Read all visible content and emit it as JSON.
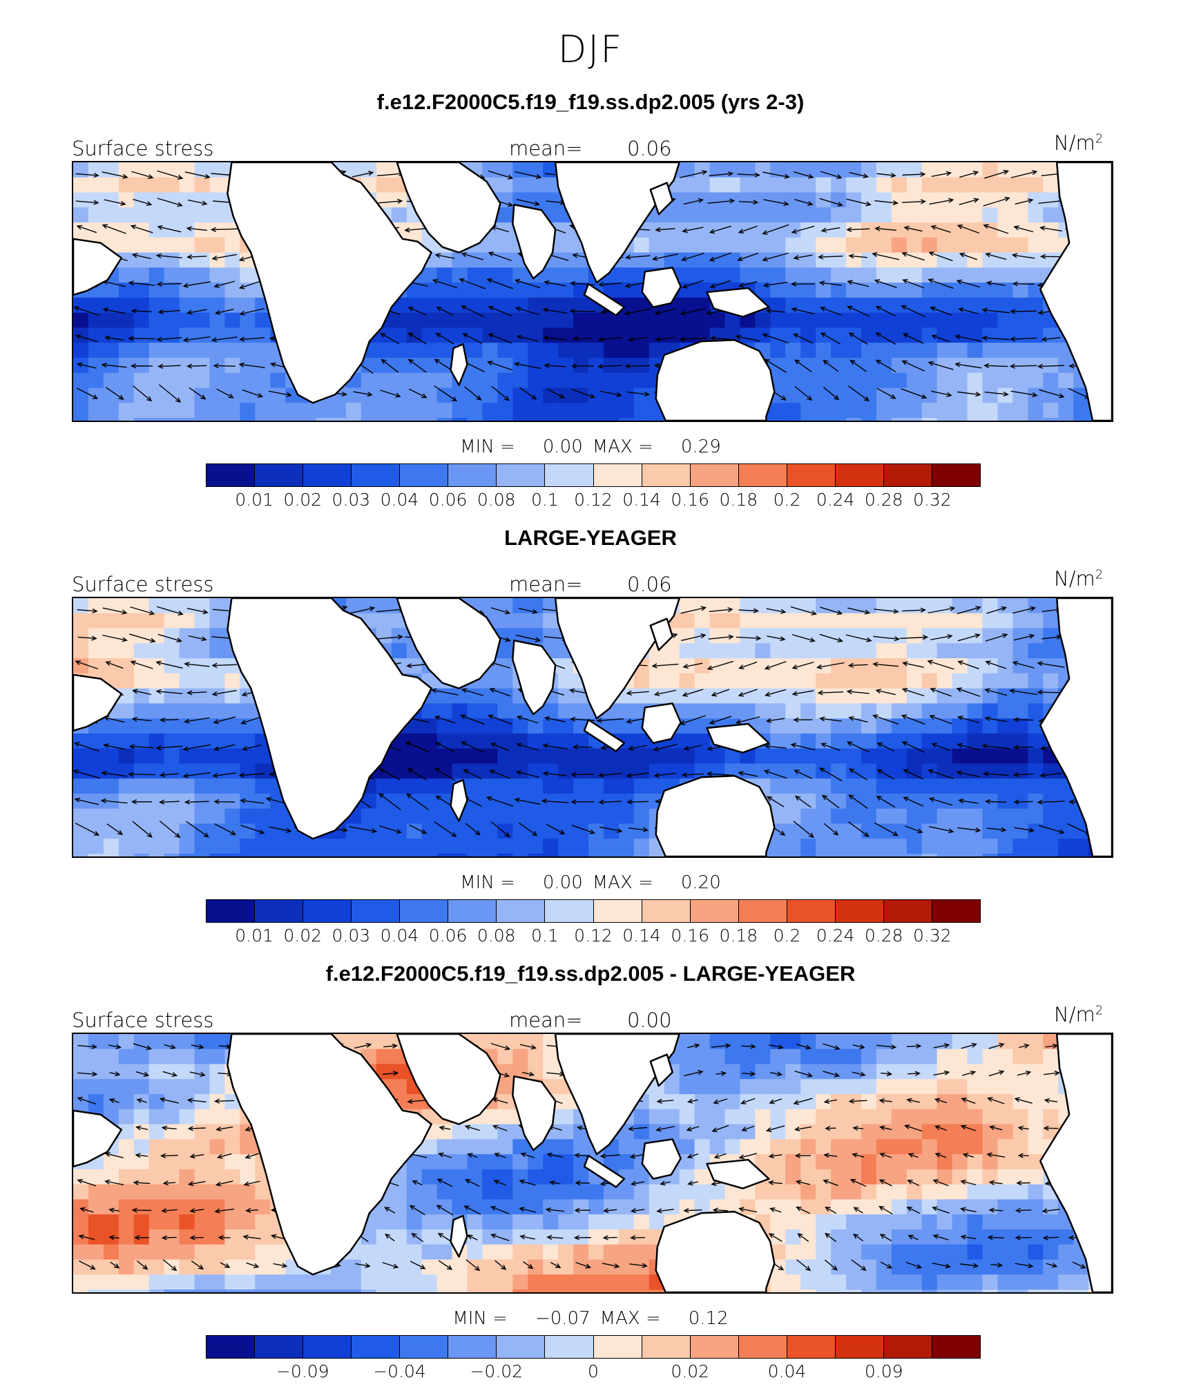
{
  "figure": {
    "title": "DJF"
  },
  "colors": {
    "scale": [
      "#08108f",
      "#0c2fbb",
      "#1140d6",
      "#1f5be6",
      "#3d78ee",
      "#6a97f3",
      "#95b5f6",
      "#c4d8fa",
      "#fde6d4",
      "#fbc9ab",
      "#f7a482",
      "#f47e56",
      "#ea5228",
      "#d43110",
      "#b21a05",
      "#7f0000"
    ],
    "land": "#ffffff",
    "coast": "#000000",
    "arrow": "#000000"
  },
  "panels": [
    {
      "title": "f.e12.F2000C5.f19_f19.ss.dp2.005 (yrs 2-3)",
      "left_label": "Surface stress",
      "mean_label": "mean=",
      "mean_value": "0.06",
      "units": "N/m",
      "units_sup": "2",
      "min_label": "MIN =",
      "min_value": "0.00",
      "max_label": "MAX =",
      "max_value": "0.29",
      "field": "mean",
      "ticks": [
        "0.01",
        "0.02",
        "0.03",
        "0.04",
        "0.06",
        "0.08",
        "0.1",
        "0.12",
        "0.14",
        "0.16",
        "0.18",
        "0.2",
        "0.24",
        "0.28",
        "0.32"
      ]
    },
    {
      "title": "LARGE-YEAGER",
      "left_label": "Surface stress",
      "mean_label": "mean=",
      "mean_value": "0.06",
      "units": "N/m",
      "units_sup": "2",
      "min_label": "MIN =",
      "min_value": "0.00",
      "max_label": "MAX =",
      "max_value": "0.20",
      "field": "mean",
      "ticks": [
        "0.01",
        "0.02",
        "0.03",
        "0.04",
        "0.06",
        "0.08",
        "0.1",
        "0.12",
        "0.14",
        "0.16",
        "0.18",
        "0.2",
        "0.24",
        "0.28",
        "0.32"
      ]
    },
    {
      "title": "f.e12.F2000C5.f19_f19.ss.dp2.005 - LARGE-YEAGER",
      "left_label": "Surface stress",
      "mean_label": "mean=",
      "mean_value": "0.00",
      "units": "N/m",
      "units_sup": "2",
      "min_label": "MIN =",
      "min_value": "−0.07",
      "max_label": "MAX =",
      "max_value": "0.12",
      "field": "diff",
      "ticks": [
        "",
        "−0.09",
        "",
        "−0.04",
        "",
        "−0.02",
        "",
        "0",
        "",
        "0.02",
        "",
        "0.04",
        "",
        "0.09",
        ""
      ]
    }
  ]
}
